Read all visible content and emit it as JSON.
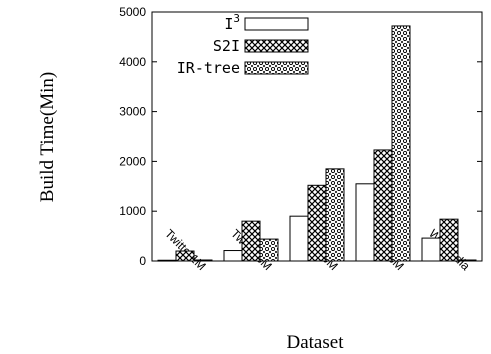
{
  "chart_data": {
    "type": "bar",
    "title": "",
    "xlabel": "Dataset",
    "ylabel": "Build Time(Min)",
    "categories": [
      "Twitter1M",
      "Twitter5M",
      "Twitter10M",
      "Twitter15M",
      "Wikipedia"
    ],
    "ylim": [
      0,
      5000
    ],
    "yticks": [
      0,
      1000,
      2000,
      3000,
      4000,
      5000
    ],
    "grid": false,
    "legend_position": "top-left",
    "series": [
      {
        "name": "I",
        "superscript": "3",
        "pattern": "plain",
        "values": [
          15,
          210,
          900,
          1550,
          460
        ]
      },
      {
        "name": "S2I",
        "pattern": "crosshatch",
        "values": [
          200,
          800,
          1520,
          2230,
          840
        ]
      },
      {
        "name": "IR-tree",
        "pattern": "dots",
        "values": [
          20,
          440,
          1850,
          4720,
          20
        ]
      }
    ]
  }
}
